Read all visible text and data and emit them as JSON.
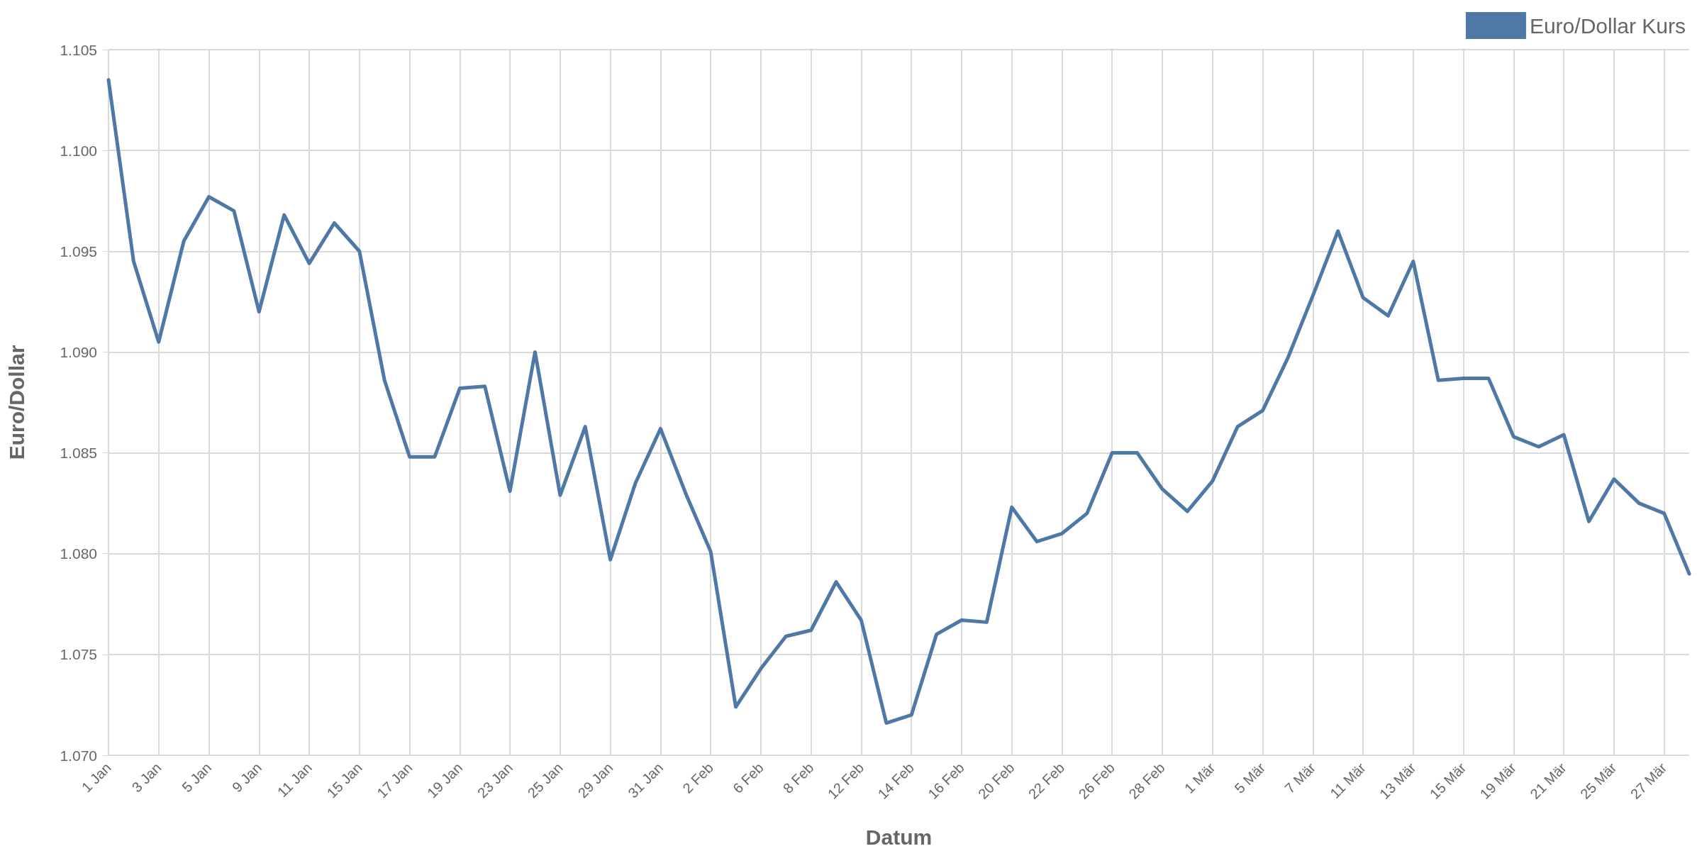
{
  "chart_data": {
    "type": "line",
    "xlabel": "Datum",
    "ylabel": "Euro/Dollar",
    "categories": [
      "1 Jan",
      null,
      "3 Jan",
      null,
      "5 Jan",
      null,
      "9 Jan",
      null,
      "11 Jan",
      null,
      "15 Jan",
      null,
      "17 Jan",
      null,
      "19 Jan",
      null,
      "23 Jan",
      null,
      "25 Jan",
      null,
      "29 Jan",
      null,
      "31 Jan",
      null,
      "2 Feb",
      null,
      "6 Feb",
      null,
      "8 Feb",
      null,
      "12 Feb",
      null,
      "14 Feb",
      null,
      "16 Feb",
      null,
      "20 Feb",
      null,
      "22 Feb",
      null,
      "26 Feb",
      null,
      "28 Feb",
      null,
      "1 Mär",
      null,
      "5 Mär",
      null,
      "7 Mär",
      null,
      "11 Mär",
      null,
      "13 Mär",
      null,
      "15 Mär",
      null,
      "19 Mär",
      null,
      "21 Mär",
      null,
      "25 Mär",
      null,
      "27 Mär",
      null
    ],
    "series": [
      {
        "name": "Euro/Dollar Kurs",
        "color": "#4e79a7",
        "values": [
          1.1035,
          1.0945,
          1.0905,
          1.0955,
          1.0977,
          1.097,
          1.092,
          1.0968,
          1.0944,
          1.0964,
          1.095,
          1.0886,
          1.0848,
          1.0848,
          1.0882,
          1.0883,
          1.0831,
          1.09,
          1.0829,
          1.0863,
          1.0797,
          1.0835,
          1.0862,
          1.083,
          1.0801,
          1.0724,
          1.0743,
          1.0759,
          1.0762,
          1.0786,
          1.0767,
          1.0716,
          1.072,
          1.076,
          1.0767,
          1.0766,
          1.0823,
          1.0806,
          1.081,
          1.082,
          1.085,
          1.085,
          1.0832,
          1.0821,
          1.0836,
          1.0863,
          1.0871,
          1.0897,
          1.0928,
          1.096,
          1.0927,
          1.0918,
          1.0945,
          1.0886,
          1.0887,
          1.0887,
          1.0858,
          1.0853,
          1.0859,
          1.0816,
          1.0837,
          1.0825,
          1.082,
          1.079
        ]
      }
    ],
    "ylim": [
      1.07,
      1.105
    ],
    "yticks": [
      {
        "value": 1.07,
        "label": "1.070"
      },
      1.075,
      {
        "value": 1.08,
        "label": "1.080"
      },
      1.085,
      {
        "value": 1.09,
        "label": "1.090"
      },
      1.095,
      {
        "value": 1.1,
        "label": "1.100"
      },
      1.105
    ],
    "grid": true,
    "legend": "top right",
    "marker": "none",
    "line_style": "solid"
  }
}
